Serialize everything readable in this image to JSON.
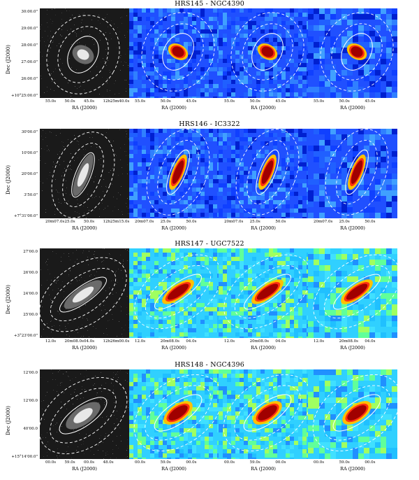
{
  "rows": [
    {
      "title": "HRS145 - NGC4390",
      "ylabel": "Dec (J2000)",
      "yticks": [
        "30:00.0\"",
        "29:00.0\"",
        "28:00.0\"",
        "27:00.0\"",
        "26:00.0\"",
        "+10°25:00.0\""
      ],
      "xlabels": [
        "RA (J2000)",
        "RA (J2000)",
        "RA (J2000)",
        "RA (J2000)"
      ],
      "xticks": [
        [
          "55.0s",
          "50.0s",
          "45.0s",
          "12h25m40.0s"
        ],
        [
          "55.0s",
          "50.0s",
          "45.0s"
        ],
        [
          "55.0s",
          "50.0s",
          "45.0s"
        ],
        [
          "55.0s",
          "50.0s",
          "45.0s"
        ]
      ]
    },
    {
      "title": "HRS146 - IC3322",
      "ylabel": "Dec (J2000)",
      "yticks": [
        "30'00.0\"",
        "10'00.0\"",
        "20'00.0\"",
        "3'50.0\"",
        "+7°31'00.0\""
      ],
      "xlabels": [
        "RA (J2000)",
        "RA (J2000)",
        "RA (J2000)",
        "RA (J2000)"
      ],
      "xticks": [
        [
          "20m07.0s",
          "25.0s",
          "50.0s",
          "12h25m15.0s"
        ],
        [
          "20m07.0s",
          "25.0s",
          "50.0s"
        ],
        [
          "20m07.0s",
          "25.0s",
          "50.0s"
        ],
        [
          "20m07.0s",
          "25.0s",
          "50.0s"
        ]
      ]
    },
    {
      "title": "HRS147 - UGC7522",
      "ylabel": "Dec (J2000)",
      "yticks": [
        "27'00.0",
        "26'00.0",
        "24'00.0",
        "25'00.0",
        "+3°23'00.0\""
      ],
      "xlabels": [
        "RA (J2000)",
        "RA (J2000)",
        "RA (J2000)",
        "RA (J2000)"
      ],
      "xticks": [
        [
          "12.0s",
          "20m08.0s",
          "04.0s",
          "12h26m00.0s"
        ],
        [
          "12.0s",
          "20m08.0s",
          "04.0s"
        ],
        [
          "12.0s",
          "20m08.0s",
          "04.0s"
        ],
        [
          "12.0s",
          "20m08.0s",
          "04.0s"
        ]
      ]
    },
    {
      "title": "HRS148 - NGC4396",
      "ylabel": "Dec (J2000)",
      "yticks": [
        "12'00.0",
        "12'00.0",
        "40'00.0",
        "+15°14'00.0\""
      ],
      "xlabels": [
        "RA (J2000)",
        "RA (J2000)",
        "RA (J2000)",
        "RA (J2000)"
      ],
      "xticks": [
        [
          "00.0s",
          "59.0s",
          "00.0s",
          "48.0s"
        ],
        [
          "00.0s",
          "59.0s",
          "00.0s"
        ],
        [
          "00.0s",
          "59.0s",
          "00.0s"
        ],
        [
          "00.0s",
          "59.0s",
          "00.0s"
        ]
      ]
    }
  ],
  "galaxies": [
    {
      "angle": 30,
      "inner_rx": 20,
      "inner_ry": 28,
      "core_rx": 9,
      "core_ry": 7,
      "elong": false
    },
    {
      "angle": 22,
      "inner_rx": 11,
      "inner_ry": 34,
      "core_rx": 5,
      "core_ry": 18,
      "elong": true
    },
    {
      "angle": 55,
      "inner_rx": 12,
      "inner_ry": 40,
      "core_rx": 6,
      "core_ry": 18,
      "elong": true
    },
    {
      "angle": 55,
      "inner_rx": 15,
      "inner_ry": 40,
      "core_rx": 7,
      "core_ry": 16,
      "elong": true
    }
  ],
  "colors": {
    "bg_jet": "#2050ff",
    "bg_jet_b": "#30d0ff",
    "core": "#a00000",
    "mid": "#ff3010",
    "halo": "#ffc000"
  }
}
